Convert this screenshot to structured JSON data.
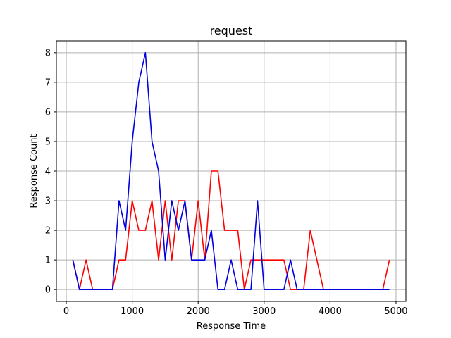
{
  "chart_data": {
    "type": "line",
    "title": "request",
    "xlabel": "Response Time",
    "ylabel": "Response Count",
    "xlim": [
      -150,
      5150
    ],
    "ylim": [
      -0.4,
      8.4
    ],
    "xticks": [
      0,
      1000,
      2000,
      3000,
      4000,
      5000
    ],
    "yticks": [
      0,
      1,
      2,
      3,
      4,
      5,
      6,
      7,
      8
    ],
    "grid": true,
    "series": [
      {
        "color": "#ff0000",
        "x": [
          100,
          200,
          300,
          400,
          500,
          600,
          700,
          800,
          900,
          1000,
          1100,
          1200,
          1300,
          1400,
          1500,
          1600,
          1700,
          1800,
          1900,
          2000,
          2100,
          2200,
          2300,
          2400,
          2500,
          2600,
          2700,
          2800,
          2900,
          3000,
          3100,
          3200,
          3300,
          3400,
          3500,
          3600,
          3700,
          3800,
          3900,
          4000,
          4100,
          4200,
          4300,
          4400,
          4500,
          4600,
          4700,
          4800,
          4900
        ],
        "y": [
          1,
          0,
          1,
          0,
          0,
          0,
          0,
          1,
          1,
          3,
          2,
          2,
          3,
          1,
          3,
          1,
          3,
          3,
          1,
          3,
          1,
          4,
          4,
          2,
          2,
          2,
          0,
          1,
          1,
          1,
          1,
          1,
          1,
          0,
          0,
          0,
          2,
          1,
          0,
          0,
          0,
          0,
          0,
          0,
          0,
          0,
          0,
          0,
          1
        ]
      },
      {
        "color": "#0000e0",
        "x": [
          100,
          200,
          300,
          400,
          500,
          600,
          700,
          800,
          900,
          1000,
          1100,
          1200,
          1300,
          1400,
          1500,
          1600,
          1700,
          1800,
          1900,
          2000,
          2100,
          2200,
          2300,
          2400,
          2500,
          2600,
          2700,
          2800,
          2900,
          3000,
          3100,
          3200,
          3300,
          3400,
          3500,
          3600,
          3700,
          3800,
          3900,
          4000,
          4100,
          4200,
          4300,
          4400,
          4500,
          4600,
          4700,
          4800,
          4900
        ],
        "y": [
          1,
          0,
          0,
          0,
          0,
          0,
          0,
          3,
          2,
          5,
          7,
          8,
          5,
          4,
          1,
          3,
          2,
          3,
          1,
          1,
          1,
          2,
          0,
          0,
          1,
          0,
          0,
          0,
          3,
          0,
          0,
          0,
          0,
          1,
          0,
          0,
          0,
          0,
          0,
          0,
          0,
          0,
          0,
          0,
          0,
          0,
          0,
          0,
          0
        ]
      }
    ]
  }
}
